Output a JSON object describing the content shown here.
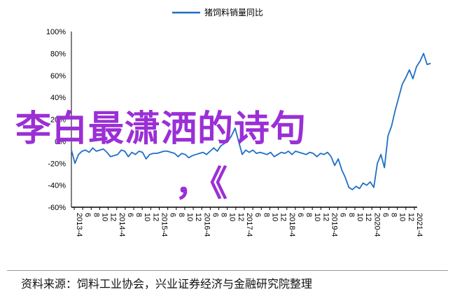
{
  "chart_data": {
    "type": "line",
    "title": "",
    "legend": {
      "entries": [
        "猪饲料销量同比"
      ],
      "placement": "top-center"
    },
    "ylim": [
      -60,
      100
    ],
    "yticks": [
      "100%",
      "80%",
      "60%",
      "40%",
      "20%",
      "0%",
      "-20%",
      "-40%",
      "-60%"
    ],
    "yticks_values": [
      100,
      80,
      60,
      40,
      20,
      0,
      -20,
      -40,
      -60
    ],
    "x_range": [
      2013.25,
      2021.35
    ],
    "xticks": [
      {
        "year": "2013",
        "month": "4"
      },
      {
        "year": "",
        "month": "6"
      },
      {
        "year": "",
        "month": "8"
      },
      {
        "year": "",
        "month": "10"
      },
      {
        "year": "",
        "month": "12"
      },
      {
        "year": "2014",
        "month": "4"
      },
      {
        "year": "",
        "month": "6"
      },
      {
        "year": "",
        "month": "8"
      },
      {
        "year": "",
        "month": "10"
      },
      {
        "year": "",
        "month": "12"
      },
      {
        "year": "2015",
        "month": "4"
      },
      {
        "year": "",
        "month": "6"
      },
      {
        "year": "",
        "month": "8"
      },
      {
        "year": "",
        "month": "10"
      },
      {
        "year": "",
        "month": "12"
      },
      {
        "year": "2016",
        "month": "4"
      },
      {
        "year": "",
        "month": "6"
      },
      {
        "year": "",
        "month": "8"
      },
      {
        "year": "",
        "month": "10"
      },
      {
        "year": "",
        "month": "12"
      },
      {
        "year": "2017",
        "month": "4"
      },
      {
        "year": "",
        "month": "6"
      },
      {
        "year": "",
        "month": "8"
      },
      {
        "year": "",
        "month": "10"
      },
      {
        "year": "",
        "month": "12"
      },
      {
        "year": "2018",
        "month": "4"
      },
      {
        "year": "",
        "month": "6"
      },
      {
        "year": "",
        "month": "8"
      },
      {
        "year": "",
        "month": "10"
      },
      {
        "year": "",
        "month": "12"
      },
      {
        "year": "2019",
        "month": "4"
      },
      {
        "year": "",
        "month": "6"
      },
      {
        "year": "",
        "month": "8"
      },
      {
        "year": "",
        "month": "10"
      },
      {
        "year": "",
        "month": "12"
      },
      {
        "year": "2020",
        "month": "4"
      },
      {
        "year": "",
        "month": "6"
      },
      {
        "year": "",
        "month": "8"
      },
      {
        "year": "",
        "month": "10"
      },
      {
        "year": "",
        "month": "12"
      },
      {
        "year": "2021",
        "month": "4"
      }
    ],
    "series": [
      {
        "name": "猪饲料销量同比",
        "color": "#1f6fc5",
        "points": [
          [
            "2013-04",
            -8
          ],
          [
            "2013-05",
            -20
          ],
          [
            "2013-06",
            -12
          ],
          [
            "2013-07",
            -9
          ],
          [
            "2013-08",
            -8
          ],
          [
            "2013-09",
            -10
          ],
          [
            "2013-10",
            -6
          ],
          [
            "2013-11",
            -9
          ],
          [
            "2013-12",
            -8
          ],
          [
            "2014-01",
            -7
          ],
          [
            "2014-02",
            -10
          ],
          [
            "2014-03",
            -14
          ],
          [
            "2014-04",
            -13
          ],
          [
            "2014-05",
            -12
          ],
          [
            "2014-06",
            -8
          ],
          [
            "2014-07",
            -9
          ],
          [
            "2014-08",
            -14
          ],
          [
            "2014-09",
            -10
          ],
          [
            "2014-10",
            -12
          ],
          [
            "2014-11",
            -9
          ],
          [
            "2014-12",
            -10
          ],
          [
            "2015-01",
            -16
          ],
          [
            "2015-02",
            -12
          ],
          [
            "2015-03",
            -11
          ],
          [
            "2015-04",
            -11
          ],
          [
            "2015-05",
            -10
          ],
          [
            "2015-06",
            -9
          ],
          [
            "2015-07",
            -9
          ],
          [
            "2015-08",
            -10
          ],
          [
            "2015-09",
            -11
          ],
          [
            "2015-10",
            -14
          ],
          [
            "2015-11",
            -11
          ],
          [
            "2015-12",
            -12
          ],
          [
            "2016-01",
            -15
          ],
          [
            "2016-02",
            -13
          ],
          [
            "2016-03",
            -12
          ],
          [
            "2016-04",
            -11
          ],
          [
            "2016-05",
            -10
          ],
          [
            "2016-06",
            -12
          ],
          [
            "2016-07",
            -9
          ],
          [
            "2016-08",
            -6
          ],
          [
            "2016-09",
            -9
          ],
          [
            "2016-10",
            -4
          ],
          [
            "2016-11",
            -2
          ],
          [
            "2016-12",
            0
          ],
          [
            "2017-01",
            5
          ],
          [
            "2017-02",
            12
          ],
          [
            "2017-03",
            0
          ],
          [
            "2017-04",
            -12
          ],
          [
            "2017-05",
            -8
          ],
          [
            "2017-06",
            -10
          ],
          [
            "2017-07",
            -8
          ],
          [
            "2017-08",
            -11
          ],
          [
            "2017-09",
            -10
          ],
          [
            "2017-10",
            -11
          ],
          [
            "2017-11",
            -12
          ],
          [
            "2017-12",
            -10
          ],
          [
            "2018-01",
            -14
          ],
          [
            "2018-02",
            -12
          ],
          [
            "2018-03",
            -10
          ],
          [
            "2018-04",
            -11
          ],
          [
            "2018-05",
            -9
          ],
          [
            "2018-06",
            -12
          ],
          [
            "2018-07",
            -9
          ],
          [
            "2018-08",
            -10
          ],
          [
            "2018-09",
            -11
          ],
          [
            "2018-10",
            -12
          ],
          [
            "2018-11",
            -10
          ],
          [
            "2018-12",
            -11
          ],
          [
            "2019-01",
            -14
          ],
          [
            "2019-02",
            -11
          ],
          [
            "2019-03",
            -12
          ],
          [
            "2019-04",
            -10
          ],
          [
            "2019-05",
            -14
          ],
          [
            "2019-06",
            -22
          ],
          [
            "2019-07",
            -16
          ],
          [
            "2019-08",
            -26
          ],
          [
            "2019-09",
            -33
          ],
          [
            "2019-10",
            -42
          ],
          [
            "2019-11",
            -44
          ],
          [
            "2019-12",
            -41
          ],
          [
            "2020-01",
            -43
          ],
          [
            "2020-02",
            -38
          ],
          [
            "2020-03",
            -40
          ],
          [
            "2020-04",
            -37
          ],
          [
            "2020-05",
            -42
          ],
          [
            "2020-06",
            -20
          ],
          [
            "2020-07",
            -12
          ],
          [
            "2020-08",
            -24
          ],
          [
            "2020-09",
            5
          ],
          [
            "2020-10",
            14
          ],
          [
            "2020-11",
            28
          ],
          [
            "2020-12",
            40
          ],
          [
            "2021-01",
            52
          ],
          [
            "2021-02",
            58
          ],
          [
            "2021-03",
            65
          ],
          [
            "2021-04",
            57
          ],
          [
            "2021-05",
            68
          ],
          [
            "2021-06",
            73
          ],
          [
            "2021-07",
            80
          ],
          [
            "2021-08",
            70
          ],
          [
            "2021-09",
            71
          ]
        ]
      }
    ]
  },
  "overlay": {
    "title": "李白最潇洒的诗句",
    "sub": "，《"
  },
  "source_note": "资料来源：饲料工业协会，兴业证券经济与金融研究院整理"
}
